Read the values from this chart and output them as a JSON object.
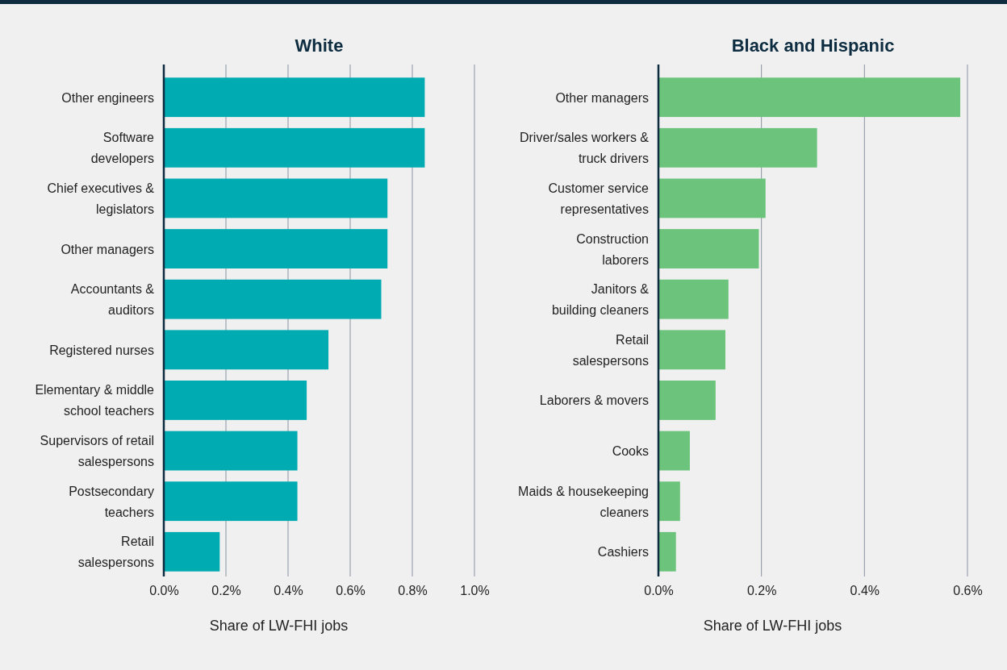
{
  "chart_data": [
    {
      "type": "bar",
      "orientation": "horizontal",
      "title": "White",
      "xlabel": "Share of LW-FHI jobs",
      "categories": [
        "Other engineers",
        "Software\ndevelopers",
        "Chief executives &\nlegislators",
        "Other managers",
        "Accountants &\nauditors",
        "Registered nurses",
        "Elementary & middle\nschool teachers",
        "Supervisors of retail\nsalespersons",
        "Postsecondary\nteachers",
        "Retail\nsalespersons"
      ],
      "values": [
        0.84,
        0.84,
        0.72,
        0.72,
        0.7,
        0.53,
        0.46,
        0.43,
        0.43,
        0.18
      ],
      "color": "#00abb2",
      "xlim": [
        0,
        1.0
      ],
      "xticks": [
        {
          "value": 0,
          "label": "0.0%"
        },
        {
          "value": 0.2,
          "label": "0.2%"
        },
        {
          "value": 0.4,
          "label": "0.4%"
        },
        {
          "value": 0.6,
          "label": "0.6%"
        },
        {
          "value": 0.8,
          "label": "0.8%"
        },
        {
          "value": 1.0,
          "label": "1.0%"
        }
      ],
      "grid": "x"
    },
    {
      "type": "bar",
      "orientation": "horizontal",
      "title": "Black and Hispanic",
      "xlabel": "Share of LW-FHI jobs",
      "categories": [
        "Other managers",
        "Driver/sales workers &\ntruck drivers",
        "Customer service\nrepresentatives",
        "Construction\nlaborers",
        "Janitors &\nbuilding cleaners",
        "Retail\nsalespersons",
        "Laborers & movers",
        "Cooks",
        "Maids & housekeeping\ncleaners",
        "Cashiers"
      ],
      "values": [
        0.586,
        0.308,
        0.208,
        0.195,
        0.136,
        0.13,
        0.111,
        0.061,
        0.042,
        0.034
      ],
      "color": "#6cc47c",
      "xlim": [
        0,
        0.6
      ],
      "xticks": [
        {
          "value": 0,
          "label": "0.0%"
        },
        {
          "value": 0.2,
          "label": "0.2%"
        },
        {
          "value": 0.4,
          "label": "0.4%"
        },
        {
          "value": 0.6,
          "label": "0.6%"
        }
      ],
      "grid": "x"
    }
  ]
}
